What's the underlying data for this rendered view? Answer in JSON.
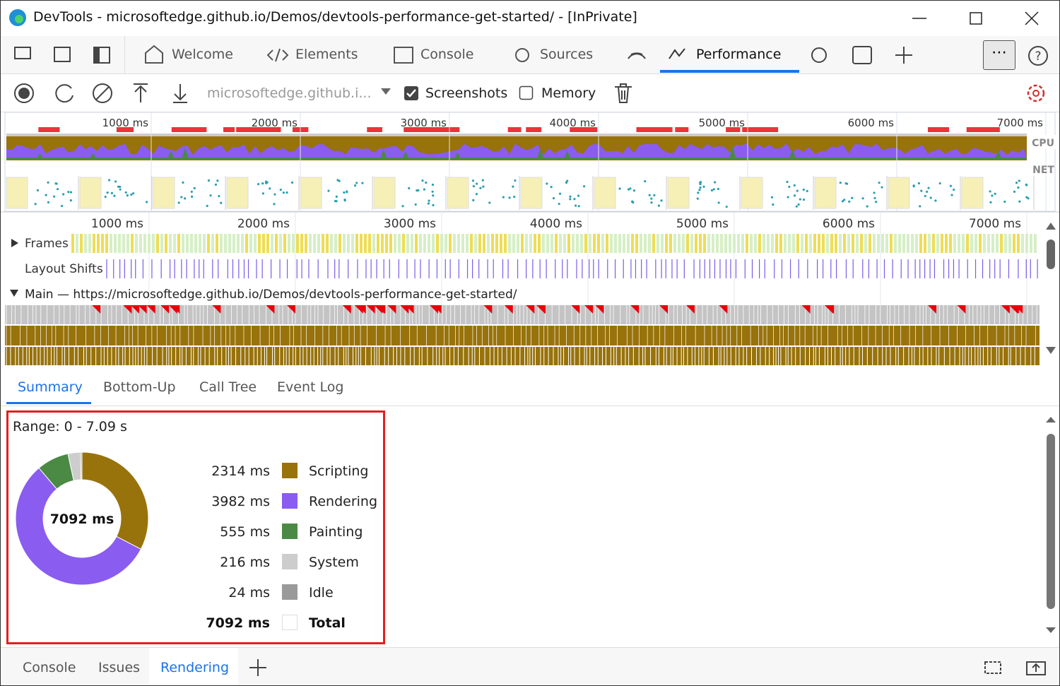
{
  "window": {
    "title": "DevTools - microsoftedge.github.io/Demos/devtools-performance-get-started/ - [InPrivate]"
  },
  "tabs": [
    "Welcome",
    "Elements",
    "Console",
    "Sources",
    "Performance"
  ],
  "toolbar": {
    "url": "microsoftedge.github.i...",
    "screenshots": "Screenshots",
    "memory": "Memory"
  },
  "overview": {
    "ticks": [
      "1000 ms",
      "2000 ms",
      "3000 ms",
      "4000 ms",
      "5000 ms",
      "6000 ms",
      "7000 ms"
    ],
    "cpu": "CPU",
    "net": "NET"
  },
  "timeline": {
    "ticks": [
      "1000 ms",
      "2000 ms",
      "3000 ms",
      "4000 ms",
      "5000 ms",
      "6000 ms",
      "7000 ms"
    ],
    "frames": "Frames",
    "layout_shifts": "Layout Shifts",
    "main": "Main — https://microsoftedge.github.io/Demos/devtools-performance-get-started/"
  },
  "summary_tabs": [
    "Summary",
    "Bottom-Up",
    "Call Tree",
    "Event Log"
  ],
  "summary": {
    "range": "Range: 0 - 7.09 s"
  },
  "chart_data": {
    "type": "donut",
    "categories": [
      "Scripting",
      "Rendering",
      "Painting",
      "System",
      "Idle"
    ],
    "values": [
      2314,
      3982,
      555,
      216,
      24
    ],
    "value_labels": [
      "2314 ms",
      "3982 ms",
      "555 ms",
      "216 ms",
      "24 ms"
    ],
    "colors": [
      "#98720b",
      "#8a5cf0",
      "#4b8a45",
      "#cdcdcd",
      "#9a9a9a"
    ],
    "total": 7092,
    "total_label": "7092 ms",
    "total_name": "Total"
  },
  "drawer_tabs": [
    "Console",
    "Issues",
    "Rendering"
  ]
}
